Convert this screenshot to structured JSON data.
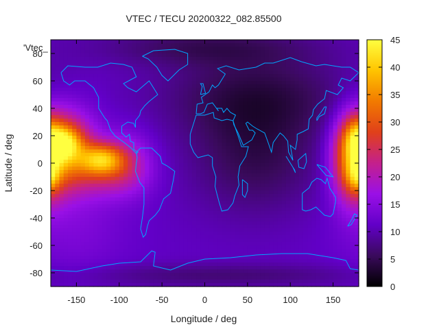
{
  "chart_data": {
    "type": "heatmap",
    "title": "VTEC / TECU 20200322_082.85500",
    "xlabel": "Longitude / deg",
    "ylabel": "Latitude / deg",
    "key_label": "'Vtec_",
    "xlim": [
      -180,
      180
    ],
    "ylim": [
      -90,
      90
    ],
    "x_ticks": [
      -150,
      -100,
      -50,
      0,
      50,
      100,
      150
    ],
    "y_ticks": [
      -80,
      -60,
      -40,
      -20,
      0,
      20,
      40,
      60,
      80
    ],
    "colorbar": {
      "range": [
        0,
        45
      ],
      "ticks": [
        0,
        5,
        10,
        15,
        20,
        25,
        30,
        35,
        40,
        45
      ],
      "palette": [
        "#000000",
        "#3a0a5c",
        "#6200c8",
        "#9a10e6",
        "#c4208c",
        "#e0401a",
        "#f27a00",
        "#ffc400",
        "#ffff40"
      ]
    },
    "grid": false,
    "legend": "colorbar-right",
    "field": {
      "background": 11,
      "features": [
        {
          "lon": -165,
          "lat": 10,
          "sx": 25,
          "sy": 20,
          "amp": 22
        },
        {
          "lon": -165,
          "lat": 15,
          "sx": 14,
          "sy": 8,
          "amp": 14
        },
        {
          "lon": -120,
          "lat": 3,
          "sx": 18,
          "sy": 8,
          "amp": 19
        },
        {
          "lon": -115,
          "lat": -8,
          "sx": 30,
          "sy": 12,
          "amp": 8
        },
        {
          "lon": -90,
          "lat": 2,
          "sx": 22,
          "sy": 16,
          "amp": 7
        },
        {
          "lon": 172,
          "lat": 2,
          "sx": 16,
          "sy": 22,
          "amp": 17
        },
        {
          "lon": 178,
          "lat": -10,
          "sx": 8,
          "sy": 8,
          "amp": 9
        },
        {
          "lon": 176,
          "lat": 22,
          "sx": 10,
          "sy": 10,
          "amp": 6
        },
        {
          "lon": 60,
          "lat": 5,
          "sx": 55,
          "sy": 30,
          "amp": -6
        },
        {
          "lon": 60,
          "lat": 50,
          "sx": 80,
          "sy": 22,
          "amp": -6
        },
        {
          "lon": 0,
          "lat": 85,
          "sx": 90,
          "sy": 10,
          "amp": -5
        },
        {
          "lon": 20,
          "lat": -82,
          "sx": 120,
          "sy": 6,
          "amp": -4
        },
        {
          "lon": -150,
          "lat": -45,
          "sx": 40,
          "sy": 25,
          "amp": 3
        }
      ]
    }
  }
}
